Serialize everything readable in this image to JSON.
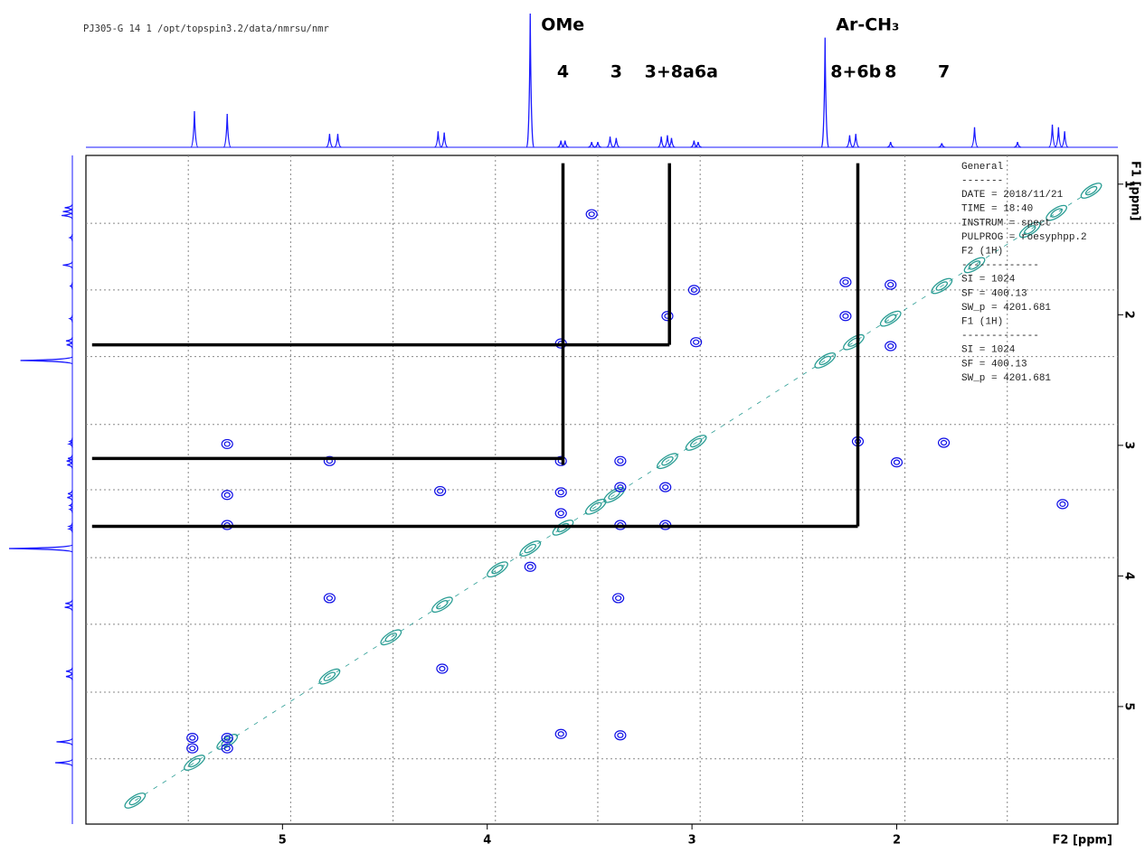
{
  "chart_data": {
    "type": "nmr2d",
    "header": "PJ305-G  14  1  /opt/topspin3.2/data/nmrsu/nmr",
    "x_label": "F2 [ppm]",
    "y_label": "F1 [ppm]",
    "xlim": [
      5.96,
      0.92
    ],
    "ylim": [
      0.78,
      5.9
    ],
    "xticks": [
      5,
      4,
      3,
      2
    ],
    "yticks": [
      1,
      2,
      3,
      4,
      5
    ],
    "xgrid": [
      5.46,
      4.96,
      4.46,
      3.96,
      3.46,
      2.96,
      2.46,
      1.96,
      1.46
    ],
    "ygrid": [
      1.3,
      1.81,
      2.32,
      2.84,
      3.34,
      3.86,
      4.37,
      4.89,
      5.4
    ],
    "projection": {
      "color": "#1a1aff",
      "ppm": [
        5.43,
        5.27,
        4.77,
        4.73,
        4.24,
        4.21,
        3.79,
        3.64,
        3.62,
        3.49,
        3.46,
        3.4,
        3.37,
        3.15,
        3.12,
        3.1,
        2.99,
        2.97,
        2.35,
        2.23,
        2.2,
        2.03,
        1.78,
        1.62,
        1.41,
        1.24,
        1.21,
        1.18
      ],
      "height": [
        27,
        25,
        10,
        10,
        12,
        11,
        100,
        5,
        5,
        4,
        4,
        8,
        7,
        8,
        9,
        7,
        5,
        4,
        82,
        9,
        10,
        4,
        3,
        15,
        4,
        17,
        15,
        12
      ]
    },
    "diagonal_peaks": {
      "color": "#2a9d94",
      "ppm": [
        5.72,
        5.43,
        5.27,
        4.77,
        4.47,
        4.22,
        3.95,
        3.79,
        3.63,
        3.47,
        3.38,
        3.12,
        2.98,
        2.35,
        2.21,
        2.03,
        1.78,
        1.62,
        1.35,
        1.22,
        1.05
      ]
    },
    "cross_peaks": {
      "color": "#1010e6",
      "f2": [
        3.49,
        2.99,
        3.12,
        2.98,
        3.64,
        2.25,
        2.03,
        2.25,
        2.03,
        2.19,
        1.77,
        2.0,
        5.27,
        5.27,
        5.27,
        4.77,
        4.23,
        3.64,
        3.64,
        3.64,
        3.35,
        3.35,
        3.13,
        3.13,
        3.35,
        1.19,
        3.79,
        4.77,
        3.36,
        4.22,
        3.64,
        3.35,
        5.44,
        5.44,
        5.27,
        5.27
      ],
      "f1": [
        1.23,
        1.81,
        2.01,
        2.21,
        2.22,
        1.75,
        1.77,
        2.01,
        2.24,
        2.97,
        2.98,
        3.13,
        2.99,
        3.38,
        3.61,
        3.12,
        3.35,
        3.12,
        3.36,
        3.52,
        3.12,
        3.32,
        3.32,
        3.61,
        3.61,
        3.45,
        3.93,
        4.17,
        4.17,
        4.71,
        5.21,
        5.22,
        5.24,
        5.32,
        5.24,
        5.32
      ]
    },
    "annotation_lines": [
      {
        "f2": [
          3.63,
          3.63
        ],
        "f1": [
          0.84,
          3.15
        ]
      },
      {
        "f2": [
          3.11,
          3.11
        ],
        "f1": [
          0.84,
          2.23
        ]
      },
      {
        "f2": [
          2.19,
          2.19
        ],
        "f1": [
          0.84,
          3.62
        ]
      },
      {
        "f2": [
          5.93,
          3.11
        ],
        "f1": [
          2.23,
          2.23
        ]
      },
      {
        "f2": [
          5.93,
          3.63
        ],
        "f1": [
          3.1,
          3.1
        ]
      },
      {
        "f2": [
          5.93,
          2.19
        ],
        "f1": [
          3.62,
          3.62
        ]
      }
    ],
    "group_labels": [
      {
        "label": "OMe",
        "ppm": 3.79
      },
      {
        "label": "Ar-CH₃",
        "ppm": 2.35
      }
    ],
    "peak_labels": [
      {
        "label": "4",
        "ppm": 3.63
      },
      {
        "label": "3",
        "ppm": 3.37
      },
      {
        "label": "3+8a",
        "ppm": 3.11
      },
      {
        "label": "6a",
        "ppm": 2.93
      },
      {
        "label": "8+6b",
        "ppm": 2.2
      },
      {
        "label": "8",
        "ppm": 2.03
      },
      {
        "label": "7",
        "ppm": 1.77
      }
    ],
    "parameters": [
      "General",
      "-------",
      "DATE = 2018/11/21",
      "TIME = 18:40",
      "INSTRUM = spect",
      "PULPROG = roesyphpp.2",
      "F2 (1H)",
      "-------------",
      "SI =  1024",
      "SF =  400.13",
      "SW_p =  4201.681",
      "F1 (1H)",
      "-------------",
      "SI =  1024",
      "SF =  400.13",
      "SW_p =  4201.681"
    ]
  }
}
